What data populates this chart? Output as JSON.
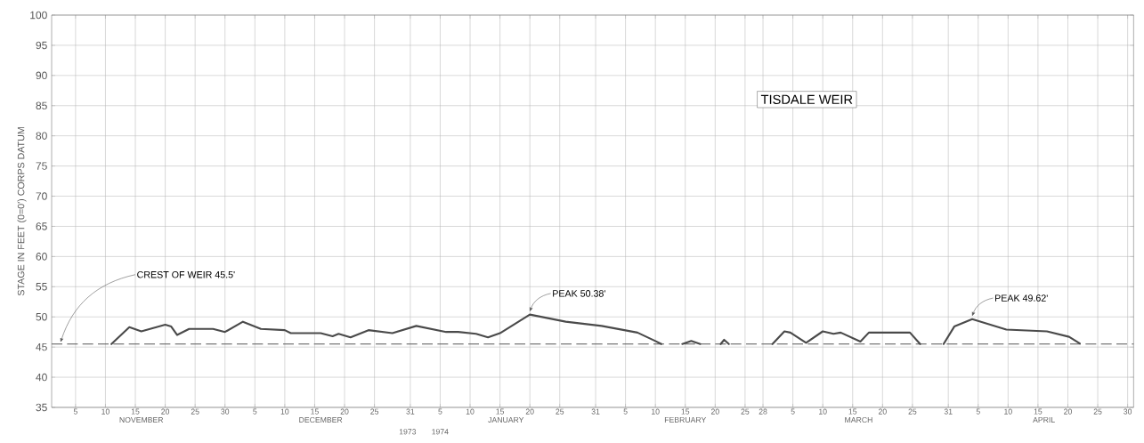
{
  "chart_data": {
    "type": "line",
    "title": "TISDALE WEIR",
    "ylabel": "STAGE IN FEET (0=0') CORPS DATUM",
    "x": [
      "1973-11-11",
      "1973-11-14",
      "1973-11-16",
      "1973-11-20",
      "1973-11-21",
      "1973-11-22",
      "1973-11-24",
      "1973-11-28",
      "1973-11-30",
      "1973-12-03",
      "1973-12-06",
      "1973-12-10",
      "1973-12-11",
      "1973-12-16",
      "1973-12-18",
      "1973-12-19",
      "1973-12-21",
      "1973-12-24",
      "1973-12-28",
      "1974-01-01",
      "1974-01-06",
      "1974-01-08",
      "1974-01-11",
      "1974-01-13",
      "1974-01-15",
      "1974-01-20",
      "1974-01-26",
      "1974-02-01",
      "1974-02-07",
      "1974-02-10",
      "1974-02-11",
      "1974-02-13",
      "1974-02-14T12:00",
      "1974-02-16T00:00",
      "1974-02-17T12:00",
      "1974-02-19",
      "1974-02-20T22:00",
      "1974-02-21T12:00",
      "1974-02-22T07:00",
      "1974-02-27",
      "1974-03-01T14:00",
      "1974-03-03T14:00",
      "1974-03-04T14:00",
      "1974-03-07T05:00",
      "1974-03-10",
      "1974-03-11T19:00",
      "1974-03-13",
      "1974-03-16T07:00",
      "1974-03-17T17:00",
      "1974-03-24T14:00",
      "1974-03-26T07:00",
      "1974-03-28",
      "1974-03-30T05:00",
      "1974-04-01",
      "1974-04-04",
      "1974-04-09T17:00",
      "1974-04-16T12:00",
      "1974-04-20T05:00",
      "1974-04-22"
    ],
    "values": [
      45.5,
      48.3,
      47.6,
      48.7,
      48.4,
      47.0,
      48.0,
      48.0,
      47.5,
      49.2,
      48.0,
      47.8,
      47.3,
      47.3,
      46.8,
      47.2,
      46.6,
      47.8,
      47.3,
      48.5,
      47.5,
      47.5,
      47.2,
      46.6,
      47.3,
      50.38,
      49.2,
      48.5,
      47.4,
      46.0,
      45.5,
      null,
      45.5,
      46.0,
      45.5,
      null,
      45.5,
      46.2,
      45.5,
      null,
      45.5,
      47.6,
      47.4,
      45.7,
      47.6,
      47.2,
      47.4,
      45.9,
      47.4,
      47.4,
      45.5,
      null,
      45.5,
      48.4,
      49.62,
      47.9,
      47.6,
      46.7,
      45.6
    ],
    "color": "#4a4a4a",
    "marker": "none",
    "line_style": "solid",
    "grid": true,
    "xlim": [
      "1973-11-01",
      "1974-05-01"
    ],
    "ylim": [
      35,
      100
    ],
    "yticks": [
      35,
      40,
      45,
      50,
      55,
      60,
      65,
      70,
      75,
      80,
      85,
      90,
      95,
      100
    ],
    "xticks": [
      {
        "value": "1973-11-05",
        "label": "5"
      },
      {
        "value": "1973-11-10",
        "label": "10"
      },
      {
        "value": "1973-11-15",
        "label": "15"
      },
      {
        "value": "1973-11-20",
        "label": "20"
      },
      {
        "value": "1973-11-25",
        "label": "25"
      },
      {
        "value": "1973-11-30",
        "label": "30"
      },
      {
        "value": "1973-12-05",
        "label": "5"
      },
      {
        "value": "1973-12-10",
        "label": "10"
      },
      {
        "value": "1973-12-15",
        "label": "15"
      },
      {
        "value": "1973-12-20",
        "label": "20"
      },
      {
        "value": "1973-12-25",
        "label": "25"
      },
      {
        "value": "1973-12-31",
        "label": "31"
      },
      {
        "value": "1974-01-05",
        "label": "5"
      },
      {
        "value": "1974-01-10",
        "label": "10"
      },
      {
        "value": "1974-01-15",
        "label": "15"
      },
      {
        "value": "1974-01-20",
        "label": "20"
      },
      {
        "value": "1974-01-25",
        "label": "25"
      },
      {
        "value": "1974-01-31",
        "label": "31"
      },
      {
        "value": "1974-02-05",
        "label": "5"
      },
      {
        "value": "1974-02-10",
        "label": "10"
      },
      {
        "value": "1974-02-15",
        "label": "15"
      },
      {
        "value": "1974-02-20",
        "label": "20"
      },
      {
        "value": "1974-02-25",
        "label": "25"
      },
      {
        "value": "1974-02-28",
        "label": "28"
      },
      {
        "value": "1974-03-05",
        "label": "5"
      },
      {
        "value": "1974-03-10",
        "label": "10"
      },
      {
        "value": "1974-03-15",
        "label": "15"
      },
      {
        "value": "1974-03-20",
        "label": "20"
      },
      {
        "value": "1974-03-25",
        "label": "25"
      },
      {
        "value": "1974-03-31",
        "label": "31"
      },
      {
        "value": "1974-04-05",
        "label": "5"
      },
      {
        "value": "1974-04-10",
        "label": "10"
      },
      {
        "value": "1974-04-15",
        "label": "15"
      },
      {
        "value": "1974-04-20",
        "label": "20"
      },
      {
        "value": "1974-04-25",
        "label": "25"
      },
      {
        "value": "1974-04-30",
        "label": "30"
      }
    ],
    "x2lim": [
      "1973-11-01",
      "1974-05-01"
    ],
    "x2ticks": [
      {
        "value": "1973-11-16",
        "label": "NOVEMBER"
      },
      {
        "value": "1973-12-16",
        "label": "DECEMBER"
      },
      {
        "value": "1974-01-16",
        "label": "JANUARY"
      },
      {
        "value": "1974-02-15",
        "label": "FEBRUARY"
      },
      {
        "value": "1974-03-16",
        "label": "MARCH"
      },
      {
        "value": "1974-04-16",
        "label": "APRIL"
      }
    ],
    "ref_lines": [
      {
        "axis": "y",
        "value": 45.5,
        "label": "CREST OF WEIR 45.5'",
        "color": "#555555",
        "line_style": "dashed"
      }
    ],
    "annotations": [
      {
        "text": "PEAK 50.38'",
        "x": "1974-01-20",
        "y": 50.38
      },
      {
        "text": "PEAK 49.62'",
        "x": "1974-04-04",
        "y": 49.62
      },
      "1973",
      "1974"
    ]
  }
}
